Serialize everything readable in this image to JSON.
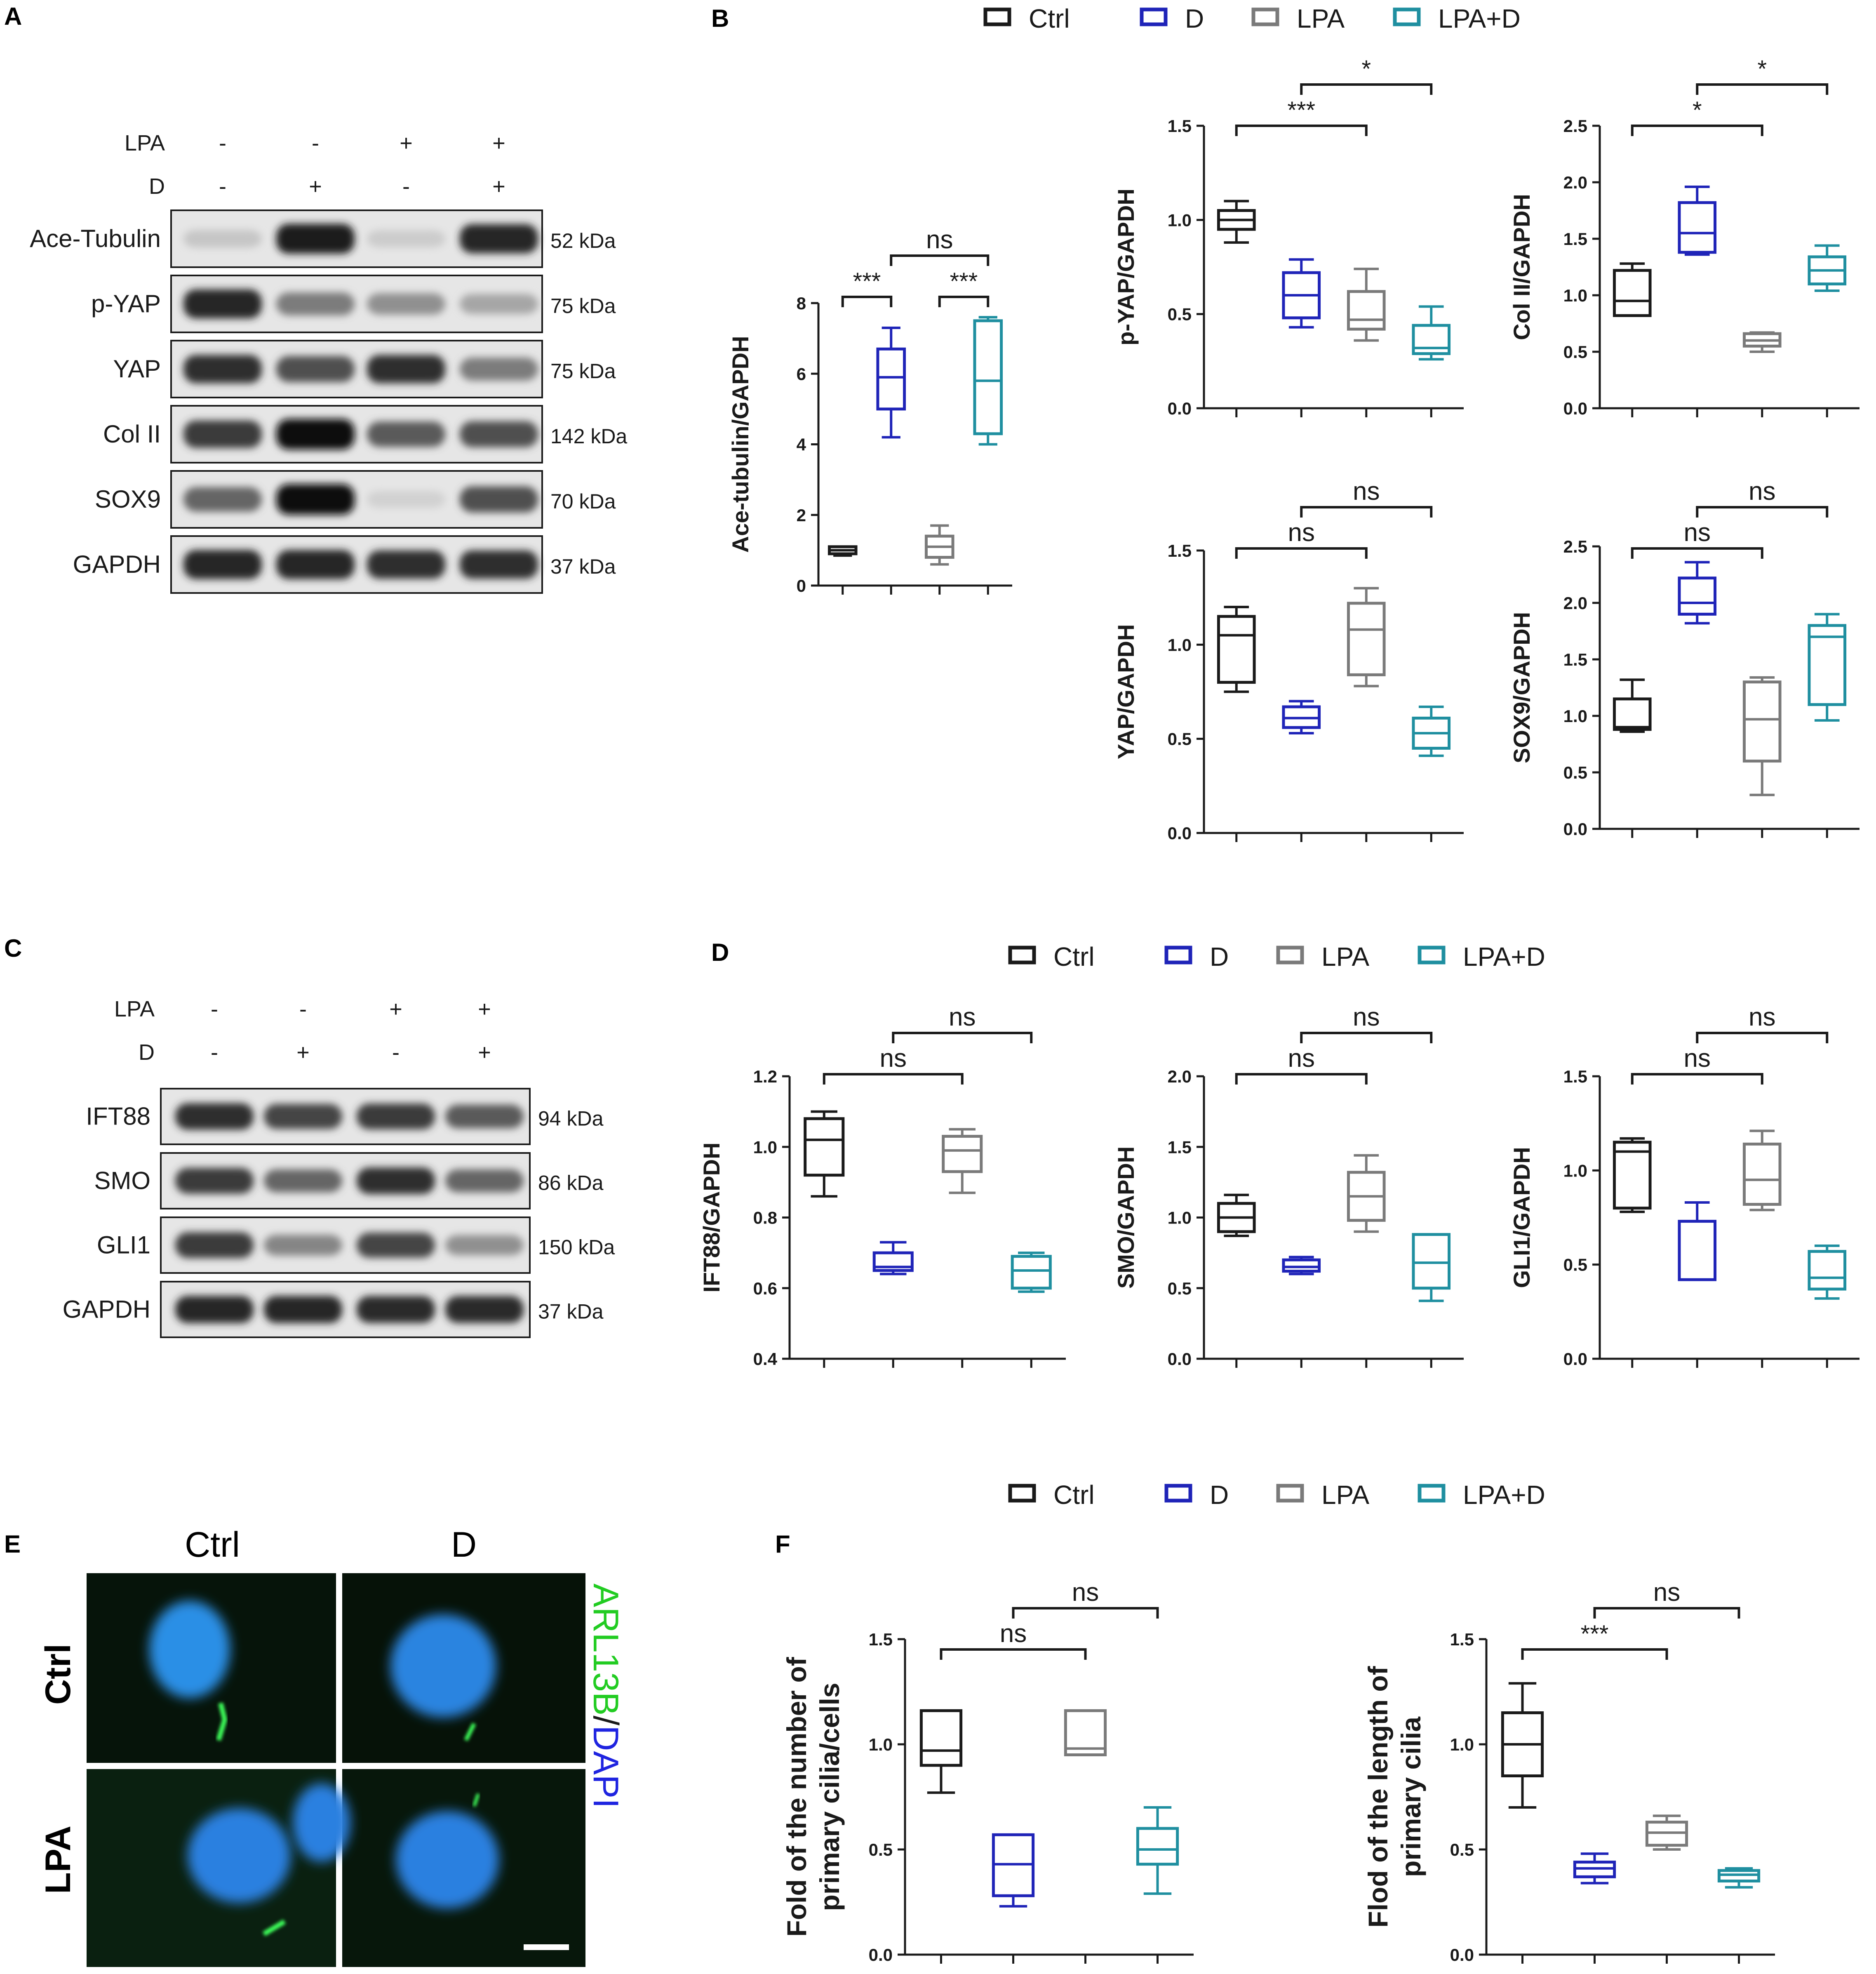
{
  "colors": {
    "Ctrl": "#1a1a1a",
    "D": "#1f24b8",
    "LPA": "#7a7a7a",
    "LPA+D": "#1f8fa0"
  },
  "legend": [
    "Ctrl",
    "D",
    "LPA",
    "LPA+D"
  ],
  "panelA": {
    "label": "A",
    "conditions": [
      {
        "name": "LPA",
        "values": [
          "-",
          "-",
          "+",
          "+"
        ]
      },
      {
        "name": "D",
        "values": [
          "-",
          "+",
          "-",
          "+"
        ]
      }
    ],
    "bands": [
      {
        "name": "Ace-Tubulin",
        "kda": "52 kDa",
        "intensity": [
          0.15,
          0.95,
          0.12,
          0.9
        ]
      },
      {
        "name": "p-YAP",
        "kda": "75 kDa",
        "intensity": [
          0.9,
          0.5,
          0.4,
          0.3
        ]
      },
      {
        "name": "YAP",
        "kda": "75 kDa",
        "intensity": [
          0.85,
          0.7,
          0.85,
          0.5
        ]
      },
      {
        "name": "Col II",
        "kda": "142 kDa",
        "intensity": [
          0.8,
          1.0,
          0.65,
          0.7
        ]
      },
      {
        "name": "SOX9",
        "kda": "70 kDa",
        "intensity": [
          0.6,
          1.0,
          0.1,
          0.7
        ]
      },
      {
        "name": "GAPDH",
        "kda": "37 kDa",
        "intensity": [
          0.9,
          0.9,
          0.85,
          0.85
        ]
      }
    ]
  },
  "panelC": {
    "label": "C",
    "conditions": [
      {
        "name": "LPA",
        "values": [
          "-",
          "-",
          "+",
          "+"
        ]
      },
      {
        "name": "D",
        "values": [
          "-",
          "+",
          "-",
          "+"
        ]
      }
    ],
    "bands": [
      {
        "name": "IFT88",
        "kda": "94 kDa",
        "intensity": [
          0.85,
          0.75,
          0.8,
          0.65
        ]
      },
      {
        "name": "SMO",
        "kda": "86 kDa",
        "intensity": [
          0.8,
          0.6,
          0.85,
          0.6
        ]
      },
      {
        "name": "GLI1",
        "kda": "150 kDa",
        "intensity": [
          0.8,
          0.45,
          0.75,
          0.4
        ]
      },
      {
        "name": "GAPDH",
        "kda": "37 kDa",
        "intensity": [
          0.9,
          0.9,
          0.88,
          0.88
        ]
      }
    ]
  },
  "panelE": {
    "label": "E",
    "cols": [
      "Ctrl",
      "D"
    ],
    "rows": [
      "Ctrl",
      "LPA"
    ],
    "stain_green": "ARL13B",
    "stain_sep": "/",
    "stain_blue": "DAPI"
  },
  "panelF": {
    "label": "F"
  },
  "panelB": {
    "label": "B"
  },
  "panelD": {
    "label": "D"
  },
  "chart_data": [
    {
      "type": "box",
      "id": "ace",
      "ylabel": "Ace-tubulin/GAPDH",
      "ylim": [
        0,
        8
      ],
      "yticks": [
        "0",
        "2",
        "4",
        "6",
        "8"
      ],
      "series": [
        {
          "name": "Ctrl",
          "min": 0.85,
          "q1": 0.9,
          "median": 1.0,
          "q3": 1.1,
          "max": 1.1
        },
        {
          "name": "D",
          "min": 4.2,
          "q1": 5.0,
          "median": 5.9,
          "q3": 6.7,
          "max": 7.3
        },
        {
          "name": "LPA",
          "min": 0.6,
          "q1": 0.8,
          "median": 1.1,
          "q3": 1.4,
          "max": 1.7
        },
        {
          "name": "LPA+D",
          "min": 4.0,
          "q1": 4.3,
          "median": 5.8,
          "q3": 7.5,
          "max": 7.6
        }
      ],
      "sig": [
        {
          "from": 0,
          "to": 1,
          "label": "***",
          "level": 0
        },
        {
          "from": 2,
          "to": 3,
          "label": "***",
          "level": 0
        },
        {
          "from": 1,
          "to": 3,
          "label": "ns",
          "level": 1
        }
      ]
    },
    {
      "type": "box",
      "id": "pyap",
      "ylabel": "p-YAP/GAPDH",
      "ylim": [
        0,
        1.5
      ],
      "yticks": [
        "0.0",
        "0.5",
        "1.0",
        "1.5"
      ],
      "series": [
        {
          "name": "Ctrl",
          "min": 0.88,
          "q1": 0.95,
          "median": 1.0,
          "q3": 1.05,
          "max": 1.1
        },
        {
          "name": "D",
          "min": 0.43,
          "q1": 0.48,
          "median": 0.6,
          "q3": 0.72,
          "max": 0.79
        },
        {
          "name": "LPA",
          "min": 0.36,
          "q1": 0.42,
          "median": 0.47,
          "q3": 0.62,
          "max": 0.74
        },
        {
          "name": "LPA+D",
          "min": 0.26,
          "q1": 0.29,
          "median": 0.32,
          "q3": 0.44,
          "max": 0.54
        }
      ],
      "sig": [
        {
          "from": 0,
          "to": 2,
          "label": "***",
          "level": 0
        },
        {
          "from": 1,
          "to": 3,
          "label": "*",
          "level": 1
        }
      ]
    },
    {
      "type": "box",
      "id": "col",
      "ylabel": "Col II/GAPDH",
      "ylim": [
        0,
        2.5
      ],
      "yticks": [
        "0.0",
        "0.5",
        "1.0",
        "1.5",
        "2.0",
        "2.5"
      ],
      "series": [
        {
          "name": "Ctrl",
          "min": 0.82,
          "q1": 0.82,
          "median": 0.95,
          "q3": 1.22,
          "max": 1.28
        },
        {
          "name": "D",
          "min": 1.36,
          "q1": 1.38,
          "median": 1.55,
          "q3": 1.82,
          "max": 1.96
        },
        {
          "name": "LPA",
          "min": 0.5,
          "q1": 0.55,
          "median": 0.6,
          "q3": 0.66,
          "max": 0.67
        },
        {
          "name": "LPA+D",
          "min": 1.04,
          "q1": 1.1,
          "median": 1.22,
          "q3": 1.34,
          "max": 1.44
        }
      ],
      "sig": [
        {
          "from": 0,
          "to": 2,
          "label": "*",
          "level": 0
        },
        {
          "from": 1,
          "to": 3,
          "label": "*",
          "level": 1
        }
      ]
    },
    {
      "type": "box",
      "id": "yap",
      "ylabel": "YAP/GAPDH",
      "ylim": [
        0,
        1.5
      ],
      "yticks": [
        "0.0",
        "0.5",
        "1.0",
        "1.5"
      ],
      "series": [
        {
          "name": "Ctrl",
          "min": 0.75,
          "q1": 0.8,
          "median": 1.05,
          "q3": 1.15,
          "max": 1.2
        },
        {
          "name": "D",
          "min": 0.53,
          "q1": 0.56,
          "median": 0.61,
          "q3": 0.67,
          "max": 0.7
        },
        {
          "name": "LPA",
          "min": 0.78,
          "q1": 0.84,
          "median": 1.08,
          "q3": 1.22,
          "max": 1.3
        },
        {
          "name": "LPA+D",
          "min": 0.41,
          "q1": 0.45,
          "median": 0.53,
          "q3": 0.61,
          "max": 0.67
        }
      ],
      "sig": [
        {
          "from": 0,
          "to": 2,
          "label": "ns",
          "level": 0
        },
        {
          "from": 1,
          "to": 3,
          "label": "ns",
          "level": 1
        }
      ]
    },
    {
      "type": "box",
      "id": "sox",
      "ylabel": "SOX9/GAPDH",
      "ylim": [
        0,
        2.5
      ],
      "yticks": [
        "0.0",
        "0.5",
        "1.0",
        "1.5",
        "2.0",
        "2.5"
      ],
      "series": [
        {
          "name": "Ctrl",
          "min": 0.86,
          "q1": 0.88,
          "median": 0.9,
          "q3": 1.15,
          "max": 1.32
        },
        {
          "name": "D",
          "min": 1.82,
          "q1": 1.9,
          "median": 2.0,
          "q3": 2.22,
          "max": 2.36
        },
        {
          "name": "LPA",
          "min": 0.3,
          "q1": 0.6,
          "median": 0.97,
          "q3": 1.3,
          "max": 1.34
        },
        {
          "name": "LPA+D",
          "min": 0.96,
          "q1": 1.1,
          "median": 1.7,
          "q3": 1.8,
          "max": 1.9
        }
      ],
      "sig": [
        {
          "from": 0,
          "to": 2,
          "label": "ns",
          "level": 0
        },
        {
          "from": 1,
          "to": 3,
          "label": "ns",
          "level": 1
        }
      ]
    },
    {
      "type": "box",
      "id": "ift",
      "ylabel": "IFT88/GAPDH",
      "ylim": [
        0.4,
        1.2
      ],
      "yticks": [
        "0.4",
        "0.6",
        "0.8",
        "1.0",
        "1.2"
      ],
      "series": [
        {
          "name": "Ctrl",
          "min": 0.86,
          "q1": 0.92,
          "median": 1.02,
          "q3": 1.08,
          "max": 1.1
        },
        {
          "name": "D",
          "min": 0.64,
          "q1": 0.65,
          "median": 0.66,
          "q3": 0.7,
          "max": 0.73
        },
        {
          "name": "LPA",
          "min": 0.87,
          "q1": 0.93,
          "median": 0.99,
          "q3": 1.03,
          "max": 1.05
        },
        {
          "name": "LPA+D",
          "min": 0.59,
          "q1": 0.6,
          "median": 0.65,
          "q3": 0.69,
          "max": 0.7
        }
      ],
      "sig": [
        {
          "from": 0,
          "to": 2,
          "label": "ns",
          "level": 0
        },
        {
          "from": 1,
          "to": 3,
          "label": "ns",
          "level": 1
        }
      ]
    },
    {
      "type": "box",
      "id": "smo",
      "ylabel": "SMO/GAPDH",
      "ylim": [
        0,
        2
      ],
      "yticks": [
        "0.0",
        "0.5",
        "1.0",
        "1.5",
        "2.0"
      ],
      "series": [
        {
          "name": "Ctrl",
          "min": 0.87,
          "q1": 0.9,
          "median": 1.0,
          "q3": 1.1,
          "max": 1.16
        },
        {
          "name": "D",
          "min": 0.6,
          "q1": 0.62,
          "median": 0.65,
          "q3": 0.7,
          "max": 0.72
        },
        {
          "name": "LPA",
          "min": 0.9,
          "q1": 0.98,
          "median": 1.15,
          "q3": 1.32,
          "max": 1.44
        },
        {
          "name": "LPA+D",
          "min": 0.41,
          "q1": 0.5,
          "median": 0.68,
          "q3": 0.88,
          "max": 0.88
        }
      ],
      "sig": [
        {
          "from": 0,
          "to": 2,
          "label": "ns",
          "level": 0
        },
        {
          "from": 1,
          "to": 3,
          "label": "ns",
          "level": 1
        }
      ]
    },
    {
      "type": "box",
      "id": "gli",
      "ylabel": "GLI1/GAPDH",
      "ylim": [
        0,
        1.5
      ],
      "yticks": [
        "0.0",
        "0.5",
        "1.0",
        "1.5"
      ],
      "series": [
        {
          "name": "Ctrl",
          "min": 0.78,
          "q1": 0.8,
          "median": 1.1,
          "q3": 1.15,
          "max": 1.17
        },
        {
          "name": "D",
          "min": 0.42,
          "q1": 0.42,
          "median": 0.42,
          "q3": 0.73,
          "max": 0.83
        },
        {
          "name": "LPA",
          "min": 0.79,
          "q1": 0.82,
          "median": 0.95,
          "q3": 1.14,
          "max": 1.21
        },
        {
          "name": "LPA+D",
          "min": 0.32,
          "q1": 0.37,
          "median": 0.43,
          "q3": 0.57,
          "max": 0.6
        }
      ],
      "sig": [
        {
          "from": 0,
          "to": 2,
          "label": "ns",
          "level": 0
        },
        {
          "from": 1,
          "to": 3,
          "label": "ns",
          "level": 1
        }
      ]
    },
    {
      "type": "box",
      "id": "num",
      "ylabel": "Fold of the number of primary cilia/cells",
      "ylabel_lines": [
        "Fold of the number of",
        "primary cilia/cells"
      ],
      "ylim": [
        0,
        1.5
      ],
      "yticks": [
        "0.0",
        "0.5",
        "1.0",
        "1.5"
      ],
      "series": [
        {
          "name": "Ctrl",
          "min": 0.77,
          "q1": 0.9,
          "median": 0.97,
          "q3": 1.16,
          "max": 1.16
        },
        {
          "name": "D",
          "min": 0.23,
          "q1": 0.28,
          "median": 0.43,
          "q3": 0.57,
          "max": 0.57
        },
        {
          "name": "LPA",
          "min": 0.95,
          "q1": 0.95,
          "median": 0.98,
          "q3": 1.16,
          "max": 1.16
        },
        {
          "name": "LPA+D",
          "min": 0.29,
          "q1": 0.43,
          "median": 0.5,
          "q3": 0.6,
          "max": 0.7
        }
      ],
      "sig": [
        {
          "from": 0,
          "to": 2,
          "label": "ns",
          "level": 0
        },
        {
          "from": 1,
          "to": 3,
          "label": "ns",
          "level": 1
        }
      ]
    },
    {
      "type": "box",
      "id": "len",
      "ylabel": "Flod of the length of primary cilia",
      "ylabel_lines": [
        "Flod of the length of",
        "primary cilia"
      ],
      "ylim": [
        0,
        1.5
      ],
      "yticks": [
        "0.0",
        "0.5",
        "1.0",
        "1.5"
      ],
      "series": [
        {
          "name": "Ctrl",
          "min": 0.7,
          "q1": 0.85,
          "median": 1.0,
          "q3": 1.15,
          "max": 1.29
        },
        {
          "name": "D",
          "min": 0.34,
          "q1": 0.37,
          "median": 0.41,
          "q3": 0.44,
          "max": 0.48
        },
        {
          "name": "LPA",
          "min": 0.5,
          "q1": 0.52,
          "median": 0.58,
          "q3": 0.63,
          "max": 0.66
        },
        {
          "name": "LPA+D",
          "min": 0.32,
          "q1": 0.35,
          "median": 0.38,
          "q3": 0.4,
          "max": 0.41
        }
      ],
      "sig": [
        {
          "from": 0,
          "to": 2,
          "label": "***",
          "level": 0
        },
        {
          "from": 1,
          "to": 3,
          "label": "ns",
          "level": 1
        }
      ]
    }
  ]
}
